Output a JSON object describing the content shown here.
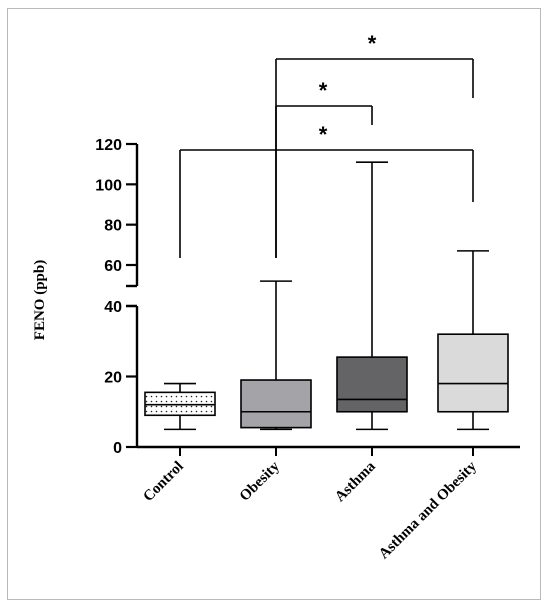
{
  "chart_data": {
    "type": "box",
    "ylabel": "FENO (ppb)",
    "yaxis": {
      "broken": true,
      "lower_range": [
        0,
        40
      ],
      "upper_range": [
        55,
        120
      ],
      "lower_ticks": [
        "0",
        "20",
        "40"
      ],
      "upper_ticks": [
        "60",
        "80",
        "100",
        "120"
      ]
    },
    "categories": [
      "Control",
      "Obesity",
      "Asthma",
      "Asthma and Obesity"
    ],
    "boxes": [
      {
        "category": "Control",
        "min": 5,
        "q1": 9,
        "median": 12,
        "q3": 15.5,
        "max": 18,
        "fill": "#ffffff",
        "pattern": "dots"
      },
      {
        "category": "Obesity",
        "min": 5,
        "q1": 5.5,
        "median": 10,
        "q3": 19,
        "max": 52,
        "fill": "#a3a3a8",
        "pattern": "none"
      },
      {
        "category": "Asthma",
        "min": 5,
        "q1": 10,
        "median": 13.5,
        "q3": 25.5,
        "max": 111,
        "fill": "#646466",
        "pattern": "none"
      },
      {
        "category": "Asthma and Obesity",
        "min": 5,
        "q1": 10,
        "median": 18,
        "q3": 32,
        "max": 67,
        "fill": "#dadada",
        "pattern": "none"
      }
    ],
    "significance": [
      {
        "from": "Control",
        "to": "Asthma and Obesity",
        "label": "*"
      },
      {
        "from": "Obesity",
        "to": "Asthma",
        "label": "*"
      },
      {
        "from": "Obesity",
        "to": "Asthma and Obesity",
        "label": "*"
      }
    ]
  }
}
